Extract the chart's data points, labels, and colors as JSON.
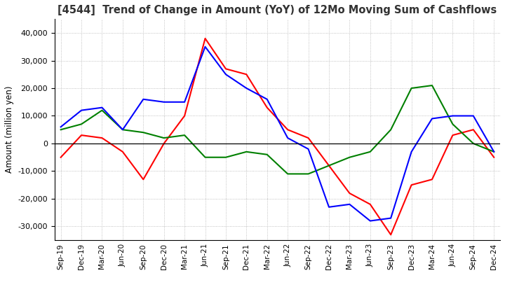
{
  "title": "[4544]  Trend of Change in Amount (YoY) of 12Mo Moving Sum of Cashflows",
  "ylabel": "Amount (million yen)",
  "ylim": [
    -35000,
    45000
  ],
  "yticks": [
    -30000,
    -20000,
    -10000,
    0,
    10000,
    20000,
    30000,
    40000
  ],
  "x_labels": [
    "Sep-19",
    "Dec-19",
    "Mar-20",
    "Jun-20",
    "Sep-20",
    "Dec-20",
    "Mar-21",
    "Jun-21",
    "Sep-21",
    "Dec-21",
    "Mar-22",
    "Jun-22",
    "Sep-22",
    "Dec-22",
    "Mar-23",
    "Jun-23",
    "Sep-23",
    "Dec-23",
    "Mar-24",
    "Jun-24",
    "Sep-24",
    "Dec-24"
  ],
  "operating": [
    -5000,
    3000,
    2000,
    -3000,
    -13000,
    0,
    10000,
    38000,
    27000,
    25000,
    13000,
    5000,
    2000,
    -8000,
    -18000,
    -22000,
    -33000,
    -15000,
    -13000,
    3000,
    5000,
    -5000
  ],
  "investing": [
    5000,
    7000,
    12000,
    5000,
    4000,
    2000,
    3000,
    -5000,
    -5000,
    -3000,
    -4000,
    -11000,
    -11000,
    -8000,
    -5000,
    -3000,
    5000,
    20000,
    21000,
    7000,
    0,
    -3000
  ],
  "free": [
    6000,
    12000,
    13000,
    5000,
    16000,
    15000,
    15000,
    35000,
    25000,
    20000,
    16000,
    2000,
    -2000,
    -23000,
    -22000,
    -28000,
    -27000,
    -3000,
    9000,
    10000,
    10000,
    -3000
  ],
  "operating_color": "#ff0000",
  "investing_color": "#008000",
  "free_color": "#0000ff",
  "background_color": "#ffffff",
  "grid_color": "#b0b0b0"
}
